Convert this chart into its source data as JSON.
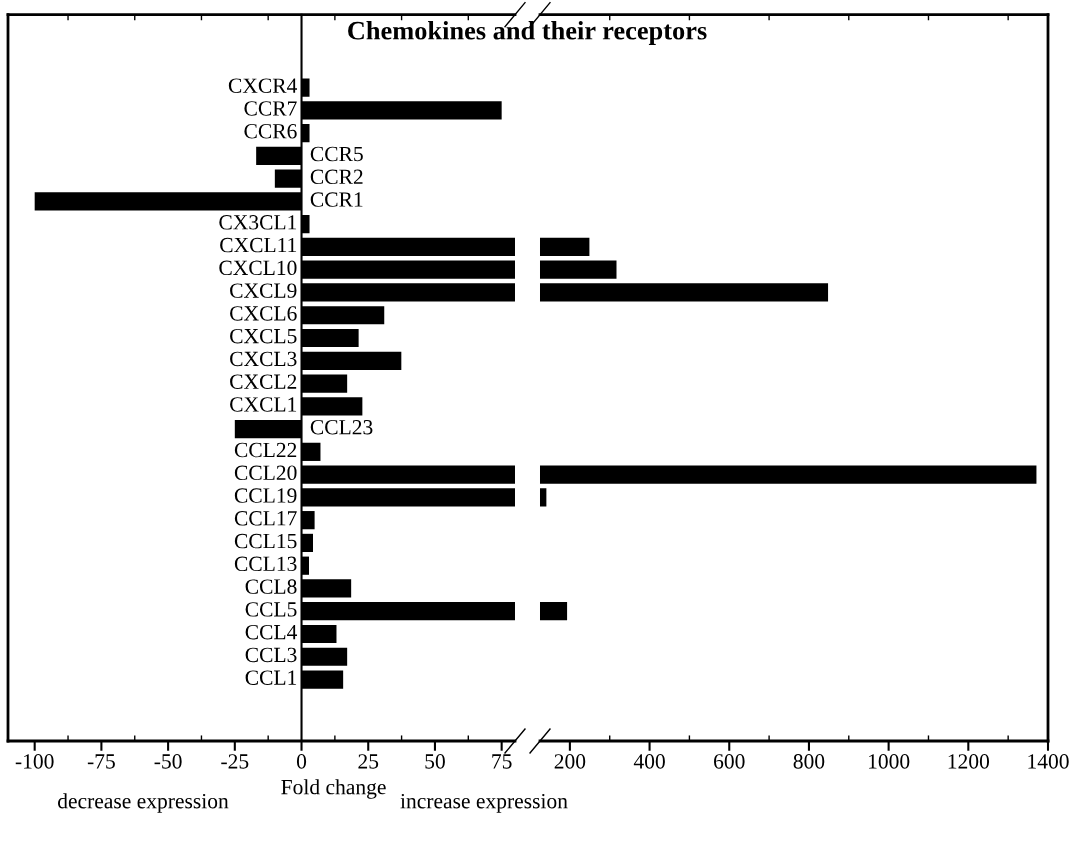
{
  "chart_data": [
    {
      "type": "bar",
      "orientation": "horizontal",
      "title": "Chemokines and their receptors",
      "xlabel": "Fold change",
      "annotations": [
        "decrease expression",
        "increase expression"
      ],
      "categories": [
        "CXCR4",
        "CCR7",
        "CCR6",
        "CCR5",
        "CCR2",
        "CCR1",
        "CX3CL1",
        "CXCL11",
        "CXCL10",
        "CXCL9",
        "CXCL6",
        "CXCL5",
        "CXCL3",
        "CXCL2",
        "CXCL1",
        "CCL23",
        "CCL22",
        "CCL20",
        "CCL19",
        "CCL17",
        "CCL15",
        "CCL13",
        "CCL8",
        "CCL5",
        "CCL4",
        "CCL3",
        "CCL1"
      ],
      "values": [
        3,
        75,
        3,
        -17,
        -10,
        -100,
        3,
        80,
        80,
        80,
        31,
        21.4,
        37.4,
        17.1,
        22.8,
        -25,
        7.1,
        80,
        80,
        4.9,
        4.3,
        2.8,
        18.6,
        80,
        13.1,
        17.1,
        15.6
      ],
      "color": "#000000",
      "xlim": [
        -110,
        80
      ],
      "xticks": [
        -100,
        -75,
        -50,
        -25,
        0,
        25,
        50,
        75
      ],
      "grid": false,
      "legend": false
    },
    {
      "type": "bar",
      "orientation": "horizontal",
      "tick_labels": "x",
      "categories": [
        null,
        null,
        null,
        null,
        null,
        null,
        null,
        null,
        null,
        null,
        null,
        null,
        null,
        null,
        null,
        null,
        null,
        null,
        null,
        null,
        null,
        null,
        null,
        null,
        null,
        null,
        null
      ],
      "values": [
        null,
        null,
        null,
        null,
        null,
        null,
        null,
        249,
        317,
        848,
        null,
        null,
        null,
        null,
        null,
        null,
        null,
        1371,
        141,
        null,
        null,
        null,
        null,
        193,
        null,
        null,
        null
      ],
      "color": "#000000",
      "xlim": [
        125,
        1400
      ],
      "xticks": [
        200,
        400,
        600,
        800,
        1000,
        1200,
        1400
      ],
      "grid": false,
      "legend": false
    }
  ]
}
